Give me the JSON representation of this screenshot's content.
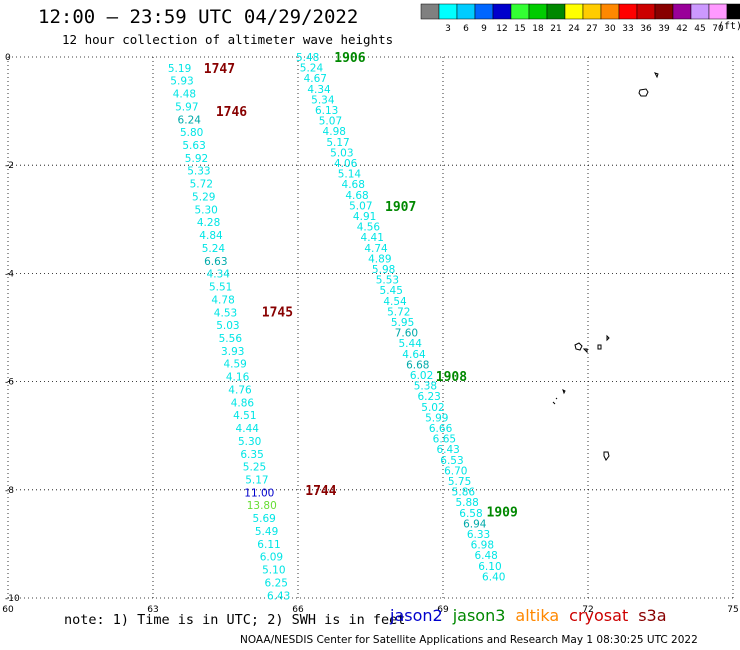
{
  "header": {
    "title": "12:00 – 23:59 UTC 04/29/2022",
    "subtitle": "12 hour collection of altimeter wave heights"
  },
  "scale": {
    "unit": "(ft)",
    "entries": [
      {
        "label": "",
        "color": "#808080"
      },
      {
        "label": "3",
        "color": "#00ffff"
      },
      {
        "label": "6",
        "color": "#00ccff"
      },
      {
        "label": "9",
        "color": "#0066ff"
      },
      {
        "label": "12",
        "color": "#0000cc"
      },
      {
        "label": "15",
        "color": "#33ff33"
      },
      {
        "label": "18",
        "color": "#00cc00"
      },
      {
        "label": "21",
        "color": "#008800"
      },
      {
        "label": "24",
        "color": "#ffff00"
      },
      {
        "label": "27",
        "color": "#ffcc00"
      },
      {
        "label": "30",
        "color": "#ff8800"
      },
      {
        "label": "33",
        "color": "#ff0000"
      },
      {
        "label": "36",
        "color": "#cc0000"
      },
      {
        "label": "39",
        "color": "#880000"
      },
      {
        "label": "42",
        "color": "#990099"
      },
      {
        "label": "45",
        "color": "#cc99ff"
      },
      {
        "label": "70",
        "color": "#ff99ff"
      },
      {
        "label": "",
        "color": "#000000"
      }
    ]
  },
  "note": "note: 1) Time is in UTC; 2) SWH is in feet",
  "legend": [
    {
      "name": "jason2",
      "color": "#0000cc"
    },
    {
      "name": "jason3",
      "color": "#008800"
    },
    {
      "name": "altika",
      "color": "#ff8800"
    },
    {
      "name": "cryosat",
      "color": "#cc0000"
    },
    {
      "name": "s3a",
      "color": "#880000"
    }
  ],
  "footer": "NOAA/NESDIS Center for Satellite Applications and Research    May  1 08:30:25 UTC 2022",
  "chart_data": {
    "type": "scatter",
    "xlim": [
      60,
      75
    ],
    "ylim": [
      -10,
      0
    ],
    "xticks": [
      60,
      63,
      66,
      69,
      72,
      75
    ],
    "yticks": [
      0,
      -2,
      -4,
      -6,
      -8,
      -10
    ],
    "grid": true,
    "tracks": [
      {
        "name": "s3a",
        "color": "#00e5e5",
        "start": [
          63.55,
          -0.2
        ],
        "end": [
          65.6,
          -9.95
        ],
        "values": [
          "5.19",
          "5.93",
          "4.48",
          "5.97",
          "6.24",
          "5.80",
          "5.63",
          "5.92",
          "5.33",
          "5.72",
          "5.29",
          "5.30",
          "4.28",
          "4.84",
          "5.24",
          "6.63",
          "4.34",
          "5.51",
          "4.78",
          "4.53",
          "5.03",
          "5.56",
          "3.93",
          "4.59",
          "4.16",
          "4.76",
          "4.86",
          "4.51",
          "4.44",
          "5.30",
          "6.35",
          "5.25",
          "5.17",
          "11.00",
          "13.80",
          "5.69",
          "5.49",
          "6.11",
          "6.09",
          "5.10",
          "6.25",
          "6.43"
        ],
        "value_colors": {
          "6.24": "#00aaaa",
          "6.63": "#00aaaa",
          "11.00": "#0000cc",
          "13.80": "#66dd33"
        }
      },
      {
        "name": "jason3",
        "color": "#00e5e5",
        "start": [
          66.2,
          0
        ],
        "end": [
          70.05,
          -9.6
        ],
        "values": [
          "5.48",
          "5.24",
          "4.67",
          "4.34",
          "5.34",
          "6.13",
          "5.07",
          "4.98",
          "5.17",
          "5.03",
          "4.06",
          "5.14",
          "4.68",
          "4.68",
          "5.07",
          "4.91",
          "4.56",
          "4.41",
          "4.74",
          "4.89",
          "5.98",
          "5.53",
          "5.45",
          "4.54",
          "5.72",
          "5.95",
          "7.60",
          "5.44",
          "4.64",
          "6.68",
          "6.02",
          "5.38",
          "6.23",
          "5.02",
          "5.99",
          "6.66",
          "6.65",
          "6.43",
          "6.53",
          "6.70",
          "5.75",
          "5.86",
          "5.88",
          "6.58",
          "6.94",
          "6.33",
          "6.98",
          "6.48",
          "6.10",
          "6.40"
        ],
        "value_colors": {
          "7.60": "#00aaaa",
          "6.68": "#00aaaa",
          "6.94": "#00aaaa"
        }
      }
    ],
    "pass_labels": [
      {
        "text": "1747",
        "x": 64.05,
        "y": -0.2,
        "color": "#880000"
      },
      {
        "text": "1746",
        "x": 64.3,
        "y": -1.0,
        "color": "#880000"
      },
      {
        "text": "1745",
        "x": 65.25,
        "y": -4.7,
        "color": "#880000"
      },
      {
        "text": "1744",
        "x": 66.15,
        "y": -8.0,
        "color": "#880000"
      },
      {
        "text": "1906",
        "x": 66.75,
        "y": 0,
        "color": "#008800"
      },
      {
        "text": "1907",
        "x": 67.8,
        "y": -2.75,
        "color": "#008800"
      },
      {
        "text": "1908",
        "x": 68.85,
        "y": -5.9,
        "color": "#008800"
      },
      {
        "text": "1909",
        "x": 69.9,
        "y": -8.4,
        "color": "#008800"
      }
    ]
  }
}
